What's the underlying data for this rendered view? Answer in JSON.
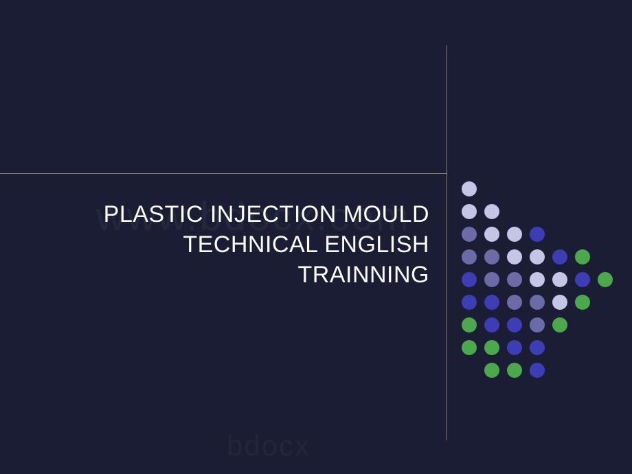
{
  "slide": {
    "title_line1": "PLASTIC INJECTION MOULD",
    "title_line2": "TECHNICAL ENGLISH",
    "title_line3": "TRAINNING",
    "background_color": "#1a1d33",
    "title_color": "#ffffff",
    "title_fontsize": 34,
    "line_color": "#808080"
  },
  "dot_pattern": {
    "colors": {
      "lavender": "#c5c5e8",
      "periwinkle": "#6b6ba8",
      "indigo": "#3d3db5",
      "green": "#4ca84c"
    },
    "dot_size": 22,
    "dot_gap": 11,
    "rows": [
      [
        "lavender",
        "empty",
        "empty",
        "empty",
        "empty",
        "empty",
        "empty"
      ],
      [
        "lavender",
        "lavender",
        "empty",
        "empty",
        "empty",
        "empty",
        "empty"
      ],
      [
        "periwinkle",
        "lavender",
        "lavender",
        "indigo",
        "empty",
        "empty",
        "empty"
      ],
      [
        "periwinkle",
        "periwinkle",
        "lavender",
        "lavender",
        "indigo",
        "green",
        "empty"
      ],
      [
        "indigo",
        "periwinkle",
        "periwinkle",
        "lavender",
        "lavender",
        "indigo",
        "green"
      ],
      [
        "indigo",
        "indigo",
        "periwinkle",
        "periwinkle",
        "lavender",
        "green",
        "empty"
      ],
      [
        "green",
        "indigo",
        "indigo",
        "periwinkle",
        "green",
        "empty",
        "empty"
      ],
      [
        "green",
        "green",
        "indigo",
        "indigo",
        "empty",
        "empty",
        "empty"
      ],
      [
        "empty",
        "green",
        "green",
        "indigo",
        "empty",
        "empty",
        "empty"
      ]
    ]
  },
  "watermark": {
    "top_text": "www.bdocx.com",
    "bottom_text": "bdocx"
  }
}
